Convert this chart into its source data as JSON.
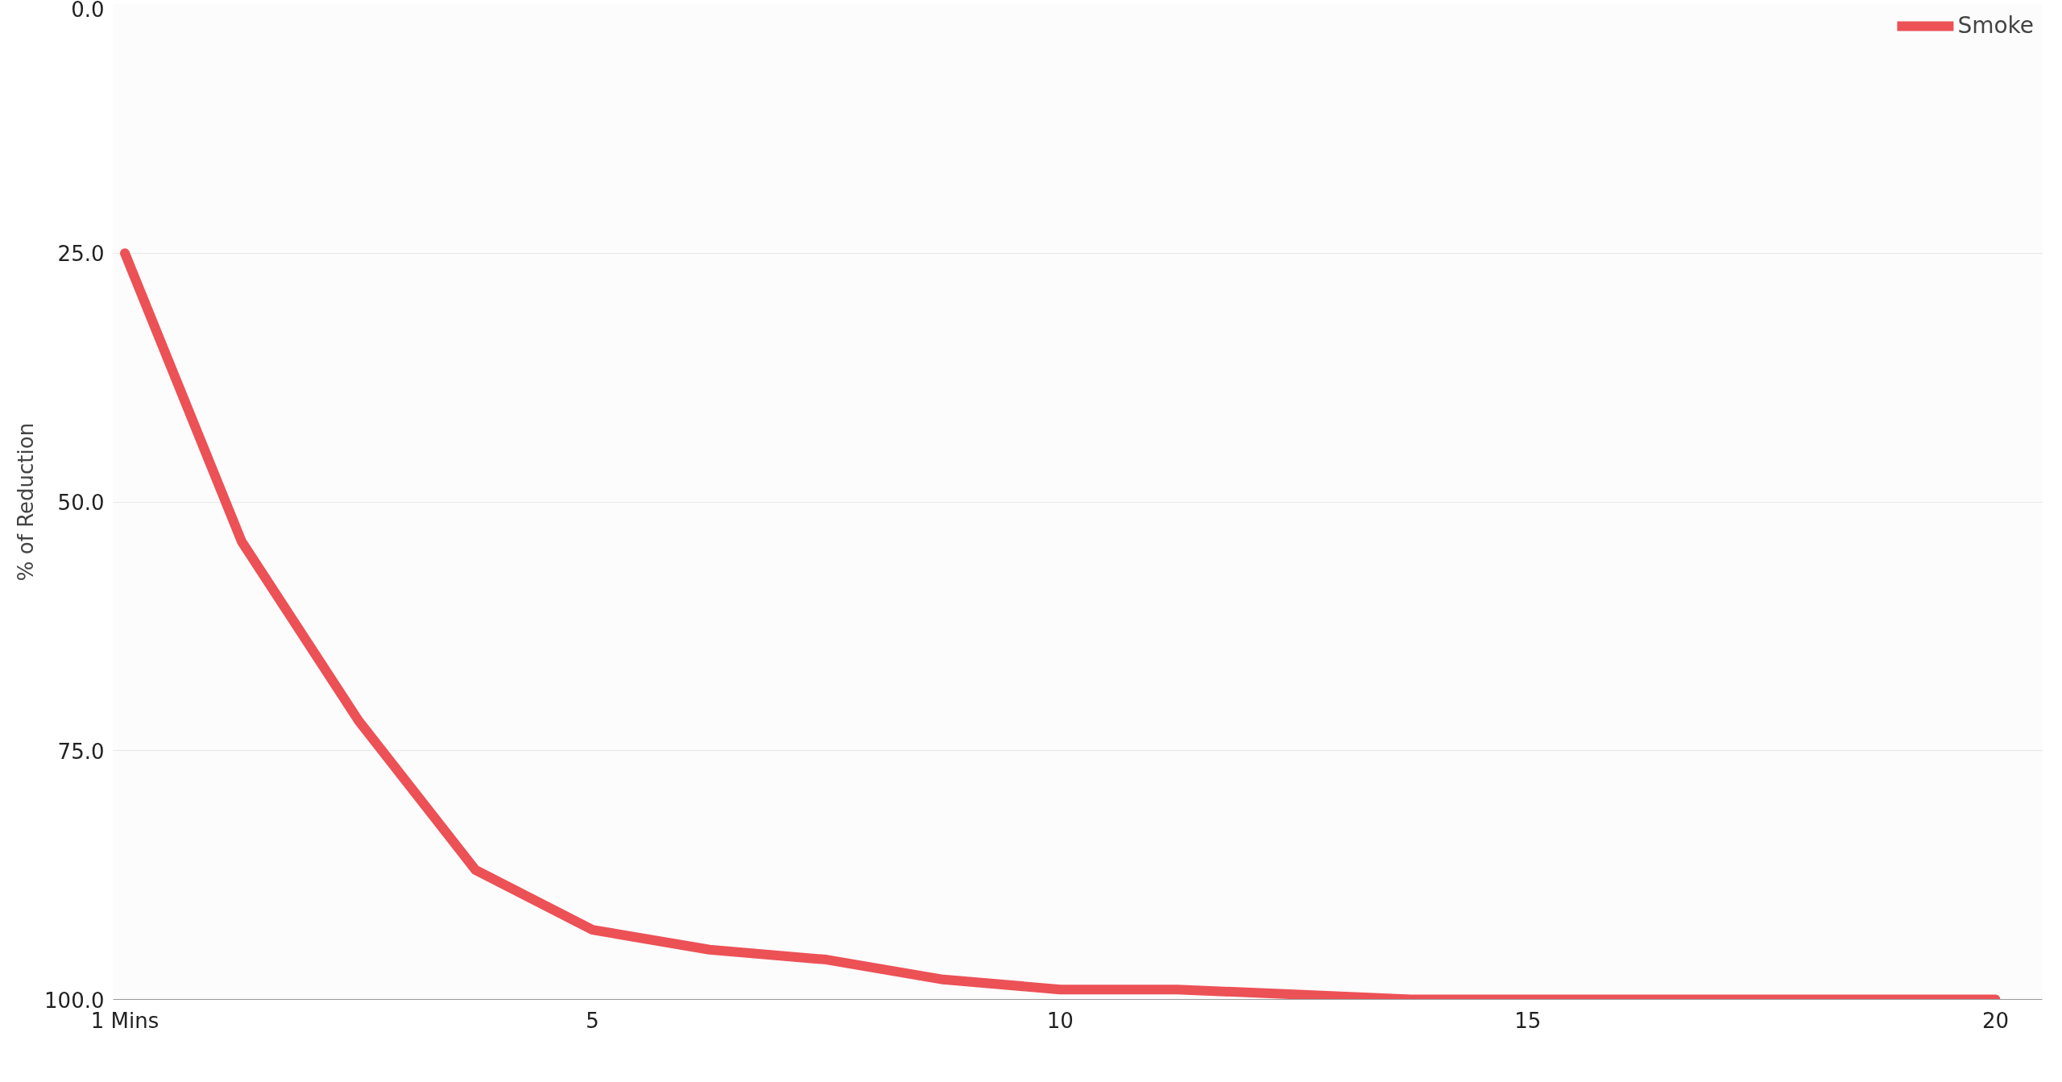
{
  "chart_data": {
    "type": "line",
    "ylabel": "% of Reduction",
    "categories": [
      "1 Mins",
      null,
      null,
      null,
      "5",
      null,
      null,
      null,
      "10",
      null,
      null,
      null,
      "15",
      null,
      null,
      null,
      "20"
    ],
    "series": [
      {
        "name": "Smoke",
        "color": "#ec5156",
        "values": [
          25,
          54,
          72,
          87,
          93,
          95,
          96,
          98,
          99,
          99,
          99.5,
          100,
          100,
          100,
          100,
          100,
          100
        ]
      }
    ],
    "ylim": [
      100,
      0
    ],
    "yticks": [
      {
        "value": 0,
        "label": "0.0"
      },
      {
        "value": 25,
        "label": "25.0"
      },
      {
        "value": 50,
        "label": "50.0"
      },
      {
        "value": 75,
        "label": "75.0"
      },
      {
        "value": 100,
        "label": "100.0"
      }
    ],
    "grid": "y",
    "legend": "top right",
    "marker": "none",
    "line_style": "solid"
  }
}
